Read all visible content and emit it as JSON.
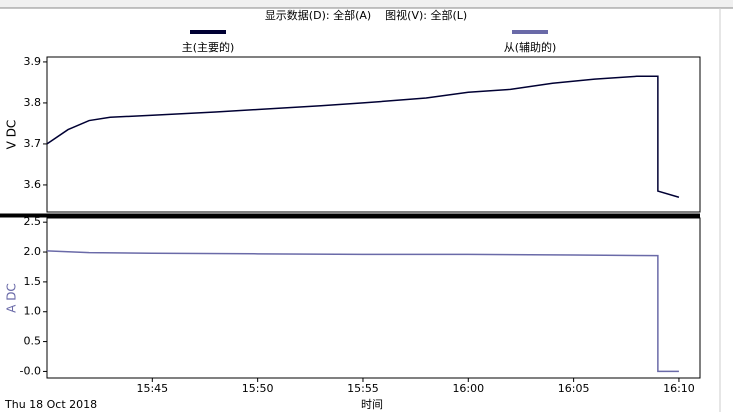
{
  "toolbar": {
    "text": "显示数据(D): 全部(A)    图视(V): 全部(L)"
  },
  "chart_data": [
    {
      "type": "line",
      "ylabel": "V DC",
      "x": [
        "15:40",
        "15:41",
        "15:42",
        "15:43",
        "15:45",
        "15:48",
        "15:50",
        "15:53",
        "15:55",
        "15:58",
        "16:00",
        "16:02",
        "16:04",
        "16:06",
        "16:08",
        "16:09",
        "16:09",
        "16:10"
      ],
      "series": [
        {
          "name": "主(主要的)",
          "color": "#000033",
          "values": [
            3.7,
            3.735,
            3.757,
            3.765,
            3.77,
            3.778,
            3.784,
            3.793,
            3.8,
            3.812,
            3.826,
            3.833,
            3.848,
            3.858,
            3.865,
            3.865,
            3.585,
            3.57
          ]
        }
      ],
      "xlim": [
        "15:40",
        "16:11"
      ],
      "ylim": [
        3.534,
        3.912
      ],
      "yticks": [
        3.6,
        3.7,
        3.8,
        3.9
      ]
    },
    {
      "type": "line",
      "ylabel": "A DC",
      "xlabel": "时间",
      "date": "Thu 18 Oct 2018",
      "x": [
        "15:40",
        "15:42",
        "15:45",
        "15:50",
        "15:55",
        "16:00",
        "16:05",
        "16:09",
        "16:09",
        "16:10"
      ],
      "series": [
        {
          "name": "从(辅助的)",
          "color": "#6a6aa8",
          "values": [
            2.02,
            1.99,
            1.98,
            1.97,
            1.96,
            1.96,
            1.95,
            1.94,
            0.0,
            0.0
          ]
        }
      ],
      "xlim": [
        "15:40",
        "16:11"
      ],
      "ylim": [
        -0.11,
        2.57
      ],
      "yticks": [
        {
          "value": 0,
          "label": "-0.0"
        },
        0.5,
        {
          "value": 1,
          "label": "1.0"
        },
        1.5,
        {
          "value": 2,
          "label": "2.0"
        },
        2.5
      ],
      "xticks": [
        "15:45",
        "15:50",
        "15:55",
        "16:00",
        "16:05",
        "16:10"
      ]
    }
  ]
}
